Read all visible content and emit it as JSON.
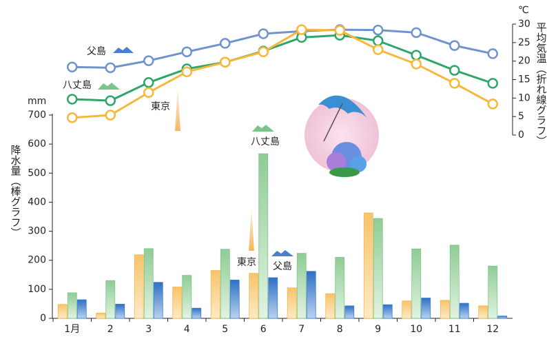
{
  "chart_data": {
    "type": "combo",
    "categories": [
      "1月",
      "2",
      "3",
      "4",
      "5",
      "6",
      "7",
      "8",
      "9",
      "10",
      "11",
      "12"
    ],
    "y_label_unit": "mm",
    "y_label": "降水量（棒グラフ）",
    "y2_label_unit": "℃",
    "y2_label": "平均気温（折れ線グラフ）",
    "ylim": [
      0,
      700
    ],
    "yticks": [
      0,
      100,
      200,
      300,
      400,
      500,
      600,
      700
    ],
    "y2lim": [
      0,
      30
    ],
    "y2ticks": [
      0,
      5,
      10,
      15,
      20,
      25,
      30
    ],
    "series": [
      {
        "name": "東京",
        "type": "bar",
        "color": "#f5b84a",
        "values": [
          48,
          18,
          219,
          108,
          165,
          155,
          105,
          85,
          363,
          60,
          62,
          43
        ]
      },
      {
        "name": "八丈島",
        "type": "bar",
        "color": "#7cc48a",
        "values": [
          88,
          130,
          240,
          148,
          238,
          567,
          224,
          210,
          344,
          239,
          252,
          180
        ]
      },
      {
        "name": "父島",
        "type": "bar",
        "color": "#3f7fd0",
        "values": [
          64,
          49,
          124,
          35,
          132,
          140,
          162,
          43,
          47,
          70,
          52,
          8
        ]
      },
      {
        "name": "父島",
        "type": "line",
        "axis": "y2",
        "color": "#6f93cc",
        "values": [
          18.4,
          18.2,
          20.1,
          22.5,
          24.8,
          27.4,
          28.1,
          28.5,
          28.4,
          27.7,
          24.2,
          22.0
        ]
      },
      {
        "name": "八丈島",
        "type": "line",
        "axis": "y2",
        "color": "#2ea56a",
        "values": [
          9.7,
          9.3,
          14.2,
          17.9,
          19.7,
          22.7,
          26.4,
          27.0,
          25.5,
          21.6,
          17.5,
          14.0
        ]
      },
      {
        "name": "東京",
        "type": "line",
        "axis": "y2",
        "color": "#f7b73a",
        "values": [
          4.7,
          5.4,
          11.5,
          17.1,
          19.7,
          22.5,
          28.5,
          28.3,
          23.1,
          19.2,
          14.0,
          8.4
        ]
      }
    ]
  }
}
